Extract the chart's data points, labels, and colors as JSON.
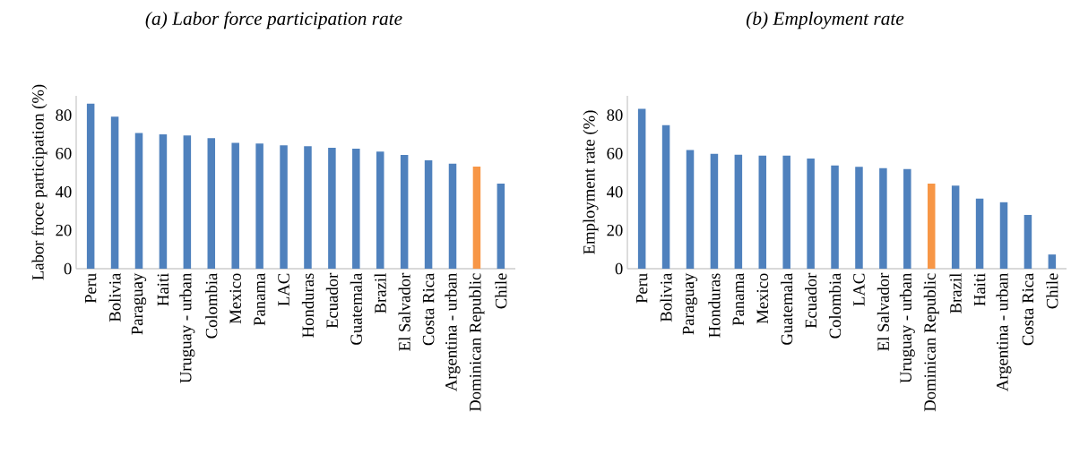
{
  "chart_data": [
    {
      "type": "bar",
      "title": "(a)  Labor force participation rate",
      "ylabel": "Labor froce participation  (%)",
      "categories": [
        "Peru",
        "Bolivia",
        "Paraguay",
        "Haiti",
        "Uruguay - urban",
        "Colombia",
        "Mexico",
        "Panama",
        "LAC",
        "Honduras",
        "Ecuador",
        "Guatemala",
        "Brazil",
        "El Salvador",
        "Costa Rica",
        "Argentina - urban",
        "Dominican Republic",
        "Chile"
      ],
      "values": [
        85.9,
        79.2,
        70.6,
        70.0,
        69.4,
        68.0,
        65.5,
        65.2,
        64.3,
        63.8,
        63.0,
        62.5,
        61.0,
        59.2,
        56.4,
        54.7,
        53.2,
        44.3
      ],
      "colors": [
        "#4f81bd",
        "#4f81bd",
        "#4f81bd",
        "#4f81bd",
        "#4f81bd",
        "#4f81bd",
        "#4f81bd",
        "#4f81bd",
        "#4f81bd",
        "#4f81bd",
        "#4f81bd",
        "#4f81bd",
        "#4f81bd",
        "#4f81bd",
        "#4f81bd",
        "#4f81bd",
        "#f79646",
        "#4f81bd"
      ],
      "ylim": [
        0,
        90
      ],
      "yticks": [
        0,
        20,
        40,
        60,
        80
      ]
    },
    {
      "type": "bar",
      "title": "(b)  Employment rate",
      "ylabel": "Employment rate (%)",
      "categories": [
        "Peru",
        "Bolivia",
        "Paraguay",
        "Honduras",
        "Panama",
        "Mexico",
        "Guatemala",
        "Ecuador",
        "Colombia",
        "LAC",
        "El Salvador",
        "Uruguay - urban",
        "Dominican Republic",
        "Brazil",
        "Haiti",
        "Argentina - urban",
        "Costa Rica",
        "Chile"
      ],
      "values": [
        83.3,
        74.7,
        61.8,
        59.8,
        59.4,
        58.9,
        58.9,
        57.4,
        53.7,
        53.1,
        52.3,
        51.9,
        44.3,
        43.2,
        36.5,
        34.6,
        28.0,
        7.4
      ],
      "colors": [
        "#4f81bd",
        "#4f81bd",
        "#4f81bd",
        "#4f81bd",
        "#4f81bd",
        "#4f81bd",
        "#4f81bd",
        "#4f81bd",
        "#4f81bd",
        "#4f81bd",
        "#4f81bd",
        "#4f81bd",
        "#f79646",
        "#4f81bd",
        "#4f81bd",
        "#4f81bd",
        "#4f81bd",
        "#4f81bd"
      ],
      "ylim": [
        0,
        90
      ],
      "yticks": [
        0,
        20,
        40,
        60,
        80
      ]
    }
  ]
}
